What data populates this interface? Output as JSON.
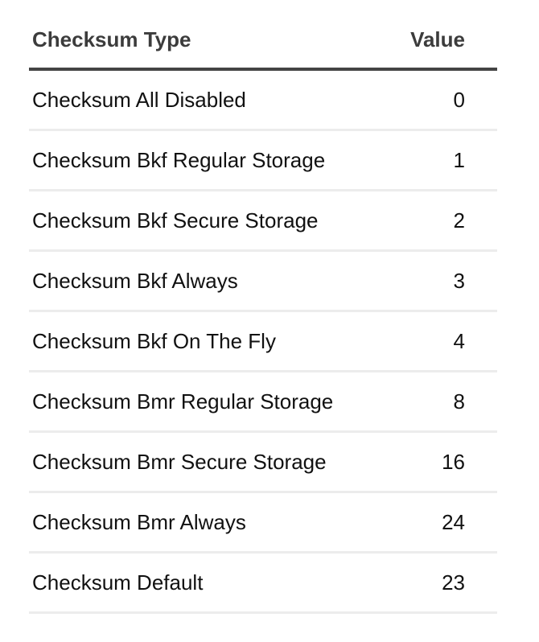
{
  "table": {
    "headers": [
      "Checksum Type",
      "Value"
    ],
    "rows": [
      [
        "Checksum All Disabled",
        "0"
      ],
      [
        "Checksum Bkf Regular Storage",
        "1"
      ],
      [
        "Checksum Bkf Secure Storage",
        "2"
      ],
      [
        "Checksum Bkf Always",
        "3"
      ],
      [
        "Checksum Bkf On The Fly",
        "4"
      ],
      [
        "Checksum Bmr Regular Storage",
        "8"
      ],
      [
        "Checksum Bmr Secure Storage",
        "16"
      ],
      [
        "Checksum Bmr Always",
        "24"
      ],
      [
        "Checksum Default",
        "23"
      ]
    ]
  }
}
